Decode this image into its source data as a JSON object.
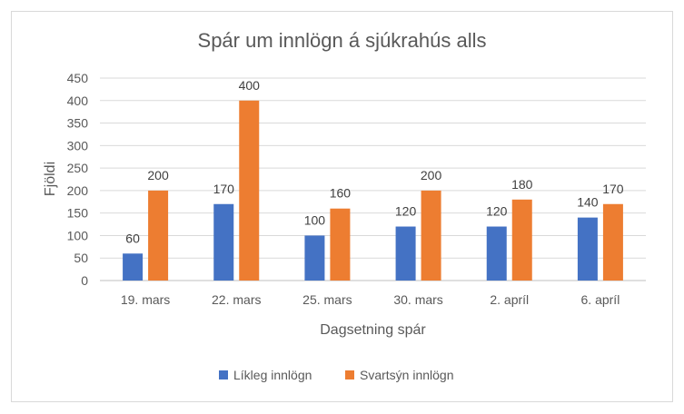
{
  "chart_data": {
    "type": "bar",
    "title": "Spár um innlögn á sjúkrahús alls",
    "xlabel": "Dagsetning spár",
    "ylabel": "Fjöldi",
    "categories": [
      "19. mars",
      "22. mars",
      "25. mars",
      "30. mars",
      "2. apríl",
      "6. apríl"
    ],
    "series": [
      {
        "name": "Líkleg innlögn",
        "color": "#4472C4",
        "values": [
          60,
          170,
          100,
          120,
          120,
          140
        ]
      },
      {
        "name": "Svartsýn innlögn",
        "color": "#ED7D31",
        "values": [
          200,
          400,
          160,
          200,
          180,
          170
        ]
      }
    ],
    "ylim": [
      0,
      450
    ],
    "yticks": [
      0,
      50,
      100,
      150,
      200,
      250,
      300,
      350,
      400,
      450
    ],
    "grid": true,
    "legend": "bottom",
    "data_labels": true
  }
}
